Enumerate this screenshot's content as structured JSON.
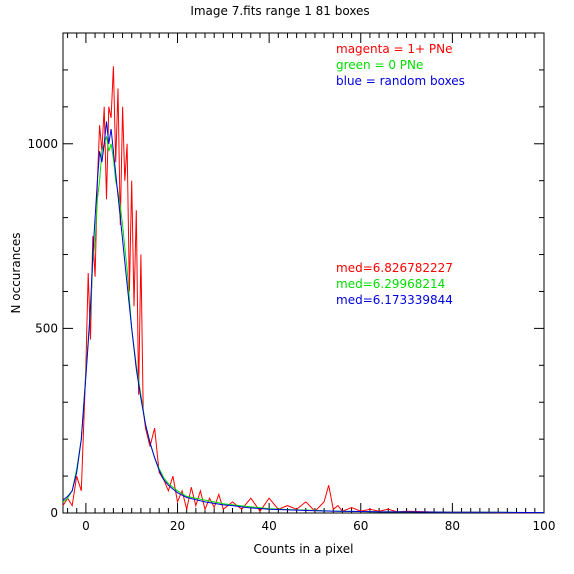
{
  "chart_data": {
    "type": "line",
    "title": "Image 7.fits   range 1    81 boxes",
    "xlabel": "Counts in a pixel",
    "ylabel": "N  occurances",
    "xlim": [
      -5,
      100
    ],
    "ylim": [
      0,
      1300
    ],
    "x_ticks": [
      0,
      20,
      40,
      60,
      80,
      100
    ],
    "y_ticks": [
      0,
      500,
      1000
    ],
    "grid": false,
    "legend_position": "top-right",
    "legend": [
      {
        "text": "magenta = 1+ PNe",
        "color": "#ff0000"
      },
      {
        "text": "green = 0 PNe",
        "color": "#00dd00"
      },
      {
        "text": "blue = random boxes",
        "color": "#0000dd"
      }
    ],
    "annotations": [
      {
        "text": "med=6.826782227",
        "color": "#ff0000"
      },
      {
        "text": "med=6.29968214",
        "color": "#00dd00"
      },
      {
        "text": "med=6.173339844",
        "color": "#0000dd"
      }
    ],
    "series": [
      {
        "name": "magenta = 1+ PNe",
        "color": "#ff0000",
        "x": [
          -5,
          -4,
          -3,
          -2,
          -1,
          0,
          0.5,
          1,
          1.5,
          2,
          2.5,
          3,
          3.5,
          4,
          4.5,
          5,
          5.5,
          6,
          6.5,
          7,
          7.5,
          8,
          8.5,
          9,
          9.5,
          10,
          10.5,
          11,
          11.5,
          12,
          12.5,
          13,
          14,
          15,
          16,
          17,
          18,
          19,
          20,
          21,
          22,
          23,
          24,
          25,
          26,
          27,
          28,
          29,
          30,
          32,
          34,
          36,
          38,
          40,
          42,
          44,
          46,
          48,
          50,
          52,
          53,
          54,
          55,
          56,
          58,
          60,
          62,
          64,
          66,
          68,
          70,
          75,
          80,
          85,
          90,
          95,
          100
        ],
        "y": [
          20,
          40,
          20,
          100,
          60,
          400,
          650,
          470,
          750,
          640,
          900,
          1050,
          980,
          1100,
          850,
          1100,
          1070,
          1210,
          950,
          1150,
          780,
          1100,
          900,
          1000,
          600,
          900,
          560,
          820,
          320,
          700,
          280,
          230,
          180,
          230,
          110,
          90,
          60,
          100,
          30,
          60,
          10,
          70,
          20,
          60,
          10,
          40,
          15,
          50,
          10,
          30,
          10,
          40,
          5,
          40,
          10,
          20,
          10,
          30,
          5,
          30,
          75,
          10,
          20,
          5,
          15,
          5,
          10,
          5,
          10,
          3,
          5,
          3,
          2,
          2,
          1,
          1,
          1
        ]
      },
      {
        "name": "green = 0 PNe",
        "color": "#00dd00",
        "x": [
          -5,
          -4,
          -3,
          -2,
          -1,
          0,
          0.5,
          1,
          1.5,
          2,
          2.5,
          3,
          3.5,
          4,
          4.5,
          5,
          5.5,
          6,
          6.5,
          7,
          7.5,
          8,
          8.5,
          9,
          9.5,
          10,
          11,
          12,
          13,
          14,
          15,
          16,
          17,
          18,
          19,
          20,
          22,
          24,
          26,
          28,
          30,
          32,
          35,
          40,
          45,
          50,
          55,
          60,
          65,
          70,
          80,
          90,
          100
        ],
        "y": [
          30,
          40,
          60,
          120,
          200,
          380,
          470,
          540,
          680,
          740,
          850,
          900,
          980,
          1000,
          1020,
          980,
          1000,
          960,
          900,
          870,
          830,
          780,
          720,
          660,
          580,
          500,
          400,
          320,
          240,
          190,
          150,
          120,
          95,
          80,
          70,
          60,
          45,
          40,
          35,
          30,
          25,
          22,
          18,
          12,
          9,
          7,
          5,
          4,
          3,
          3,
          2,
          2,
          1
        ]
      },
      {
        "name": "blue = random boxes",
        "color": "#0000dd",
        "x": [
          -5,
          -4,
          -3,
          -2,
          -1,
          0,
          0.5,
          1,
          1.5,
          2,
          2.5,
          3,
          3.5,
          4,
          4.5,
          5,
          5.5,
          6,
          6.5,
          7,
          7.5,
          8,
          8.5,
          9,
          9.5,
          10,
          11,
          12,
          13,
          14,
          15,
          16,
          17,
          18,
          19,
          20,
          22,
          24,
          26,
          28,
          30,
          32,
          35,
          40,
          45,
          50,
          55,
          60,
          65,
          70,
          80,
          90,
          100
        ],
        "y": [
          35,
          45,
          60,
          110,
          200,
          370,
          460,
          560,
          700,
          800,
          900,
          980,
          950,
          1000,
          1060,
          1000,
          1040,
          980,
          920,
          860,
          800,
          740,
          680,
          620,
          560,
          500,
          390,
          310,
          240,
          190,
          150,
          115,
          90,
          75,
          65,
          55,
          42,
          36,
          30,
          26,
          22,
          20,
          15,
          10,
          8,
          6,
          5,
          4,
          3,
          3,
          2,
          2,
          1
        ]
      }
    ]
  }
}
